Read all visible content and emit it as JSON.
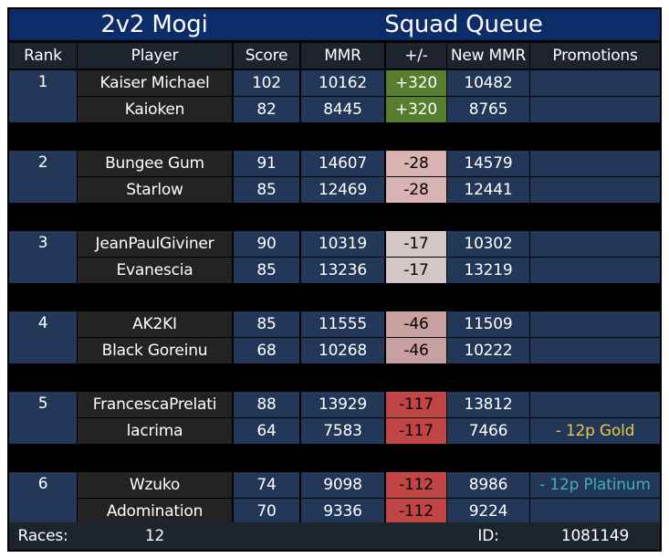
{
  "title": {
    "left": "2v2 Mogi",
    "right": "Squad Queue"
  },
  "headers": [
    "Rank",
    "Player",
    "Score",
    "MMR",
    "+/-",
    "New MMR",
    "Promotions"
  ],
  "teams": [
    {
      "rank": "1",
      "players": [
        {
          "player": "Kaiser Michael",
          "score": "102",
          "mmr": "10162",
          "delta": "+320",
          "new_mmr": "10482",
          "promotion": ""
        },
        {
          "player": "Kaioken",
          "score": "82",
          "mmr": "8445",
          "delta": "+320",
          "new_mmr": "8765",
          "promotion": ""
        }
      ]
    },
    {
      "rank": "2",
      "players": [
        {
          "player": "Bungee Gum",
          "score": "91",
          "mmr": "14607",
          "delta": "-28",
          "new_mmr": "14579",
          "promotion": ""
        },
        {
          "player": "Starlow",
          "score": "85",
          "mmr": "12469",
          "delta": "-28",
          "new_mmr": "12441",
          "promotion": ""
        }
      ]
    },
    {
      "rank": "3",
      "players": [
        {
          "player": "JeanPaulGiviner",
          "score": "90",
          "mmr": "10319",
          "delta": "-17",
          "new_mmr": "10302",
          "promotion": ""
        },
        {
          "player": "Evanescia",
          "score": "85",
          "mmr": "13236",
          "delta": "-17",
          "new_mmr": "13219",
          "promotion": ""
        }
      ]
    },
    {
      "rank": "4",
      "players": [
        {
          "player": "AK2KI",
          "score": "85",
          "mmr": "11555",
          "delta": "-46",
          "new_mmr": "11509",
          "promotion": ""
        },
        {
          "player": "Black Goreinu",
          "score": "68",
          "mmr": "10268",
          "delta": "-46",
          "new_mmr": "10222",
          "promotion": ""
        }
      ]
    },
    {
      "rank": "5",
      "players": [
        {
          "player": "FrancescaPrelati",
          "score": "88",
          "mmr": "13929",
          "delta": "-117",
          "new_mmr": "13812",
          "promotion": ""
        },
        {
          "player": "lacrima",
          "score": "64",
          "mmr": "7583",
          "delta": "-117",
          "new_mmr": "7466",
          "promotion": "- 12p Gold"
        }
      ]
    },
    {
      "rank": "6",
      "players": [
        {
          "player": "Wzuko",
          "score": "74",
          "mmr": "9098",
          "delta": "-112",
          "new_mmr": "8986",
          "promotion": "- 12p Platinum"
        },
        {
          "player": "Adomination",
          "score": "70",
          "mmr": "9336",
          "delta": "-112",
          "new_mmr": "9224",
          "promotion": ""
        }
      ]
    }
  ],
  "colors": {
    "title_bar": "#0c2d6a",
    "delta_positive": "#577e2e",
    "delta_small_loss": "#d9b2b2",
    "delta_smaller_loss": "#d3c6c6",
    "delta_medium_loss": "#c9a0a0",
    "delta_large_loss": "#c24545",
    "promotion_gold": "#e8c64a",
    "promotion_platinum": "#3fb0b8"
  },
  "footer": {
    "races_label": "Races:",
    "races_value": "12",
    "id_label": "ID:",
    "id_value": "1081149"
  }
}
